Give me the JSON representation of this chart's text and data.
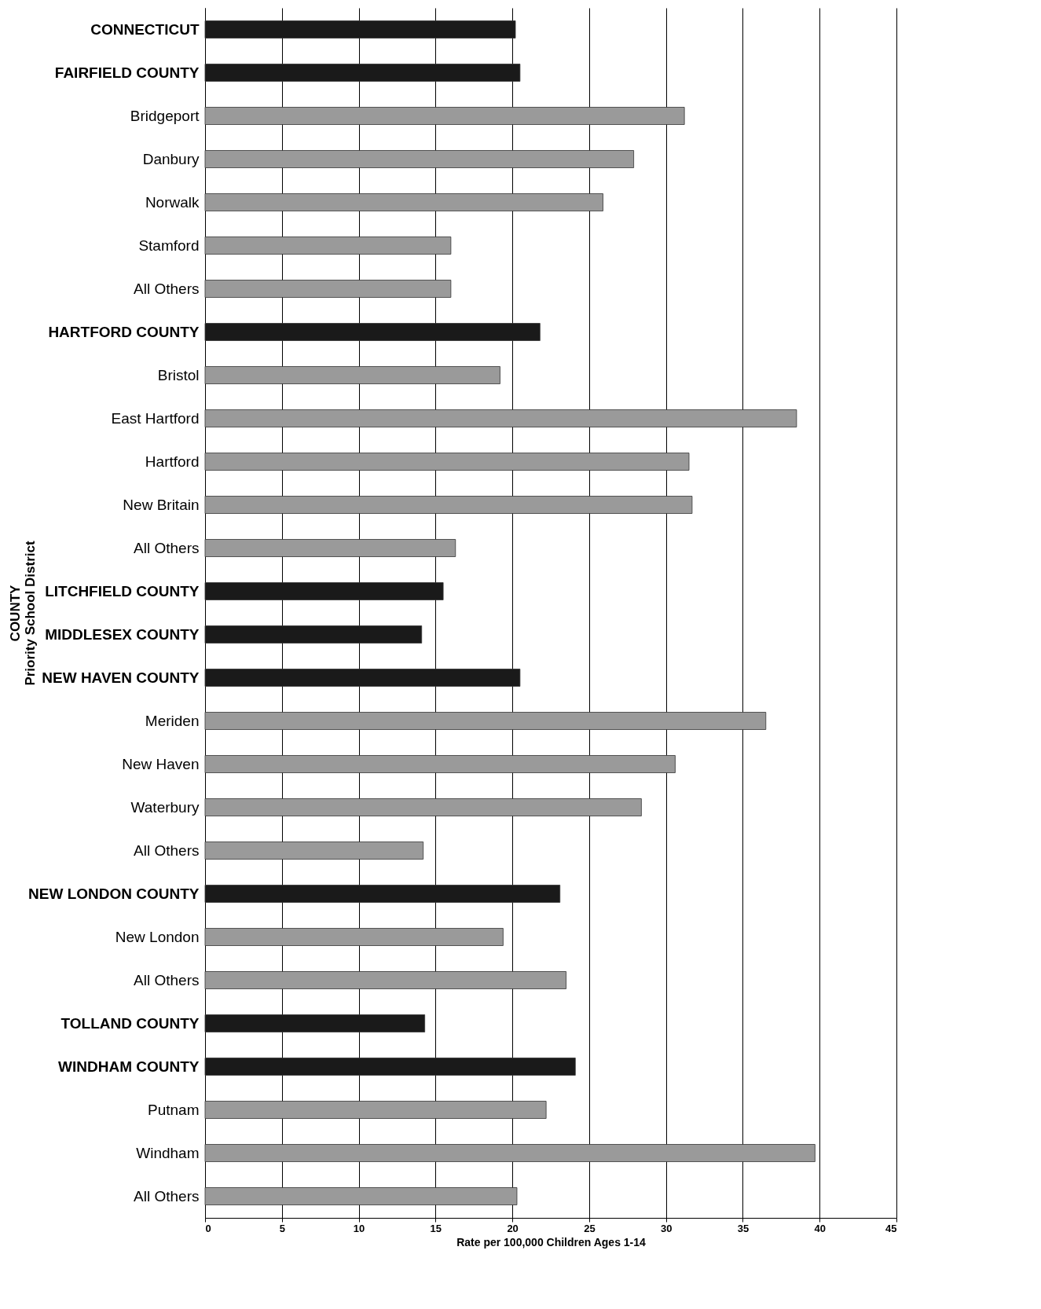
{
  "chart_data": {
    "type": "bar",
    "orientation": "horizontal",
    "xlabel": "Rate per 100,000 Children Ages 1-14",
    "ylabel": "COUNTY\nPriority School District",
    "categories": [
      "CONNECTICUT",
      "FAIRFIELD COUNTY",
      "Bridgeport",
      "Danbury",
      "Norwalk",
      "Stamford",
      "All Others",
      "HARTFORD COUNTY",
      "Bristol",
      "East Hartford",
      "Hartford",
      "New Britain",
      "All Others",
      "LITCHFIELD COUNTY",
      "MIDDLESEX COUNTY",
      "NEW HAVEN COUNTY",
      "Meriden",
      "New Haven",
      "Waterbury",
      "All Others",
      "NEW LONDON COUNTY",
      "New London",
      "All Others",
      "TOLLAND COUNTY",
      "WINDHAM COUNTY",
      "Putnam",
      "Windham",
      "All Others"
    ],
    "values": [
      20.2,
      20.5,
      31.2,
      27.9,
      25.9,
      16.0,
      16.0,
      21.8,
      19.2,
      38.5,
      31.5,
      31.7,
      16.3,
      15.5,
      14.1,
      20.5,
      36.5,
      30.6,
      28.4,
      14.2,
      23.1,
      19.4,
      23.5,
      14.3,
      24.1,
      22.2,
      39.7,
      20.3
    ],
    "colors": [
      "#1a1a1a",
      "#1a1a1a",
      "#9a9a9a",
      "#9a9a9a",
      "#9a9a9a",
      "#9a9a9a",
      "#9a9a9a",
      "#1a1a1a",
      "#9a9a9a",
      "#9a9a9a",
      "#9a9a9a",
      "#9a9a9a",
      "#9a9a9a",
      "#1a1a1a",
      "#1a1a1a",
      "#1a1a1a",
      "#9a9a9a",
      "#9a9a9a",
      "#9a9a9a",
      "#9a9a9a",
      "#1a1a1a",
      "#9a9a9a",
      "#9a9a9a",
      "#1a1a1a",
      "#1a1a1a",
      "#9a9a9a",
      "#9a9a9a",
      "#9a9a9a"
    ],
    "xlim": [
      0,
      45
    ],
    "xticks": [
      0,
      5,
      10,
      15,
      20,
      25,
      30,
      35,
      40,
      45
    ],
    "grid": "x"
  }
}
